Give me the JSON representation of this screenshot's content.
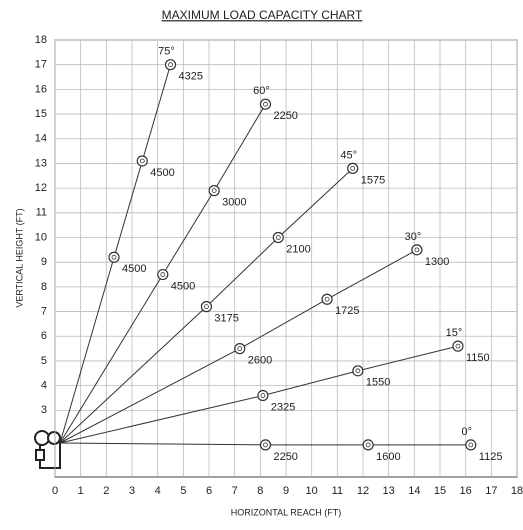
{
  "chart_data": {
    "type": "load-chart",
    "title": "MAXIMUM LOAD CAPACITY CHART",
    "x_label": "HORIZONTAL REACH (FT)",
    "y_label": "VERTICAL HEIGHT (FT)",
    "xlim": [
      0,
      18
    ],
    "xticks": [
      0,
      1,
      2,
      3,
      4,
      5,
      6,
      7,
      8,
      9,
      10,
      11,
      12,
      13,
      14,
      15,
      16,
      17,
      18
    ],
    "ylim": [
      0.3,
      18
    ],
    "yticks": [
      3,
      4,
      5,
      6,
      7,
      8,
      9,
      10,
      11,
      12,
      13,
      14,
      15,
      16,
      17,
      18
    ],
    "grid": true,
    "series": [
      {
        "name": "75°",
        "color": "#333333",
        "x": [
          2.3,
          3.4,
          4.5
        ],
        "values": [
          9.2,
          13.1,
          17.0
        ],
        "loads": [
          4500,
          4500,
          4325
        ]
      },
      {
        "name": "60°",
        "color": "#333333",
        "x": [
          4.2,
          6.2,
          8.2
        ],
        "values": [
          8.5,
          11.9,
          15.4
        ],
        "loads": [
          4500,
          3000,
          2250
        ]
      },
      {
        "name": "45°",
        "color": "#333333",
        "x": [
          5.9,
          8.7,
          11.6
        ],
        "values": [
          7.2,
          10.0,
          12.8
        ],
        "loads": [
          3175,
          2100,
          1575
        ]
      },
      {
        "name": "30°",
        "color": "#333333",
        "x": [
          7.2,
          10.6,
          14.1
        ],
        "values": [
          5.5,
          7.5,
          9.5
        ],
        "loads": [
          2600,
          1725,
          1300
        ]
      },
      {
        "name": "15°",
        "color": "#333333",
        "x": [
          8.1,
          11.8,
          15.7
        ],
        "values": [
          3.6,
          4.6,
          5.6
        ],
        "loads": [
          2325,
          1550,
          1150
        ]
      },
      {
        "name": "0°",
        "color": "#333333",
        "x": [
          8.2,
          12.2,
          16.2
        ],
        "values": [
          1.6,
          1.6,
          1.6
        ],
        "loads": [
          2250,
          1600,
          1125
        ]
      }
    ]
  }
}
